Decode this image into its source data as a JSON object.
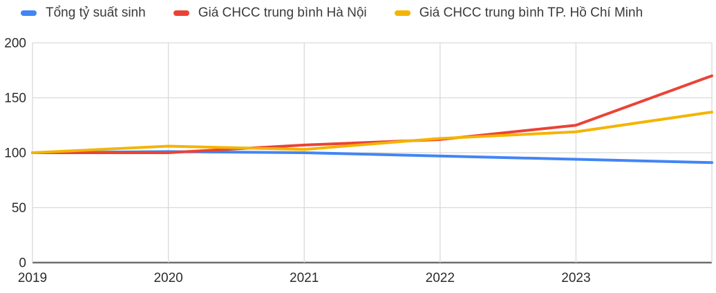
{
  "legend": {
    "items": [
      {
        "label": "Tổng tỷ suất sinh",
        "color": "#4285F4"
      },
      {
        "label": "Giá CHCC trung bình Hà Nội",
        "color": "#EA4335"
      },
      {
        "label": "Giá CHCC trung bình TP. Hồ Chí Minh",
        "color": "#F4B400"
      }
    ]
  },
  "chart_data": {
    "type": "line",
    "title": "",
    "xlabel": "",
    "ylabel": "",
    "x": [
      2019,
      2020,
      2021,
      2022,
      2023,
      2024
    ],
    "x_tick_labels": [
      "2019",
      "2020",
      "2021",
      "2022",
      "2023"
    ],
    "y_ticks": [
      0,
      50,
      100,
      150,
      200
    ],
    "y_tick_labels": [
      "0",
      "50",
      "100",
      "150",
      "200"
    ],
    "xlim": [
      2019,
      2024
    ],
    "ylim": [
      0,
      200
    ],
    "grid": true,
    "legend_position": "top",
    "series": [
      {
        "name": "Tổng tỷ suất sinh",
        "color": "#4285F4",
        "values": [
          100,
          101,
          100,
          97,
          94,
          91
        ]
      },
      {
        "name": "Giá CHCC trung bình Hà Nội",
        "color": "#EA4335",
        "values": [
          100,
          100,
          107,
          112,
          125,
          170
        ]
      },
      {
        "name": "Giá CHCC trung bình TP. Hồ Chí Minh",
        "color": "#F4B400",
        "values": [
          100,
          106,
          103,
          113,
          119,
          137
        ]
      }
    ],
    "style": {
      "gridline_color": "#d9d9d9",
      "baseline_color": "#6e6e6e",
      "line_width": 4
    }
  }
}
